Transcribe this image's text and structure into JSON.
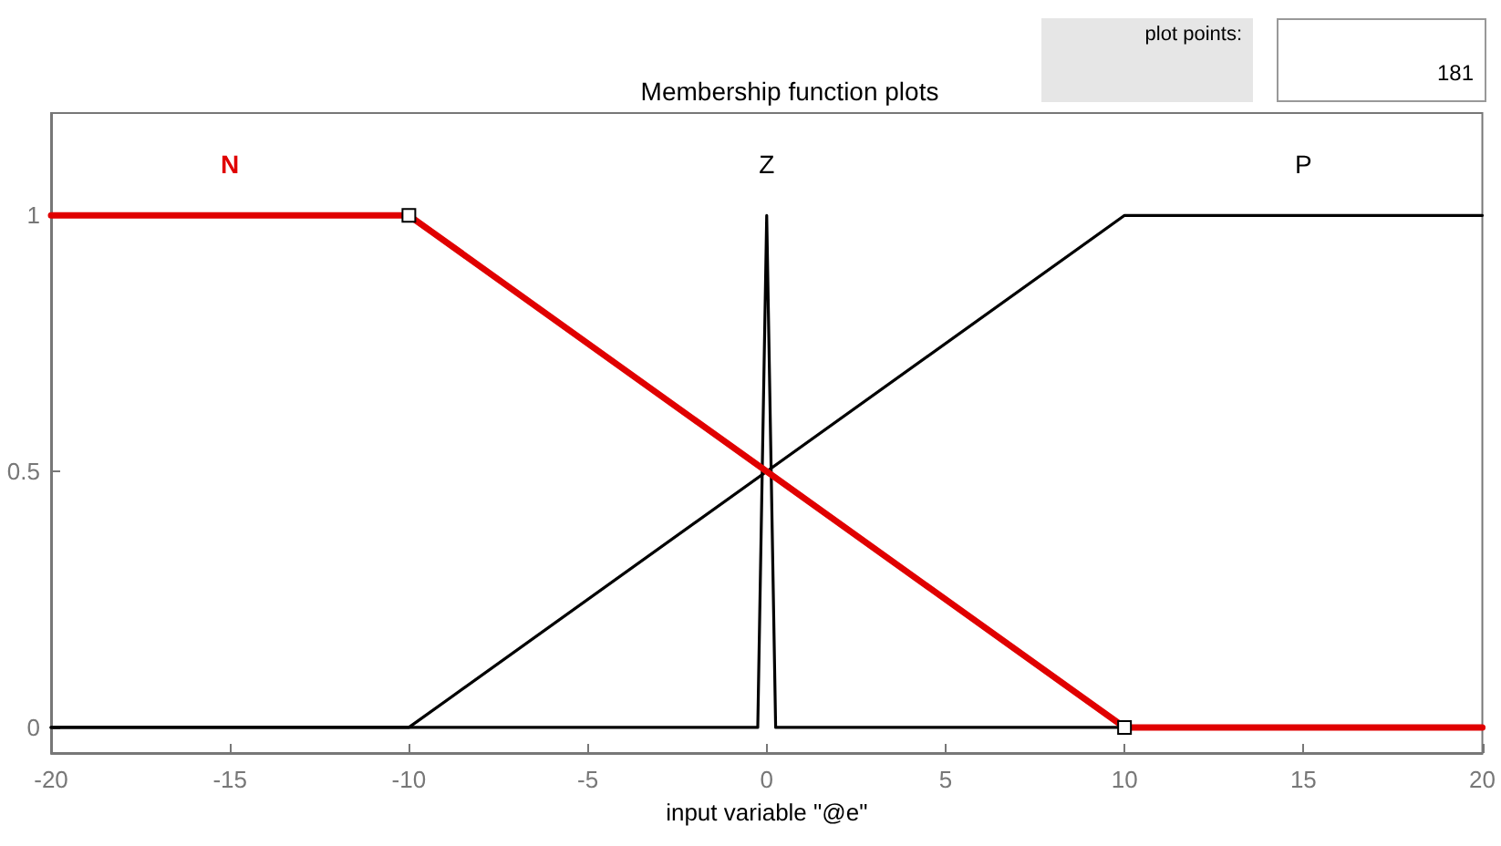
{
  "chart_data": {
    "type": "line",
    "title": "Membership function plots",
    "xlabel": "input variable \"@e\"",
    "annotations": [
      "plot points:",
      "181"
    ],
    "series": [
      {
        "name": "N",
        "color": "#e00000",
        "x": [
          -20,
          -10,
          10,
          20
        ],
        "values": [
          1,
          1,
          0,
          0
        ],
        "marker": "square"
      },
      {
        "name": "Z",
        "color": "#000000",
        "x": [
          -20,
          -0.25,
          0,
          0.25,
          20
        ],
        "values": [
          0,
          0,
          1,
          0,
          0
        ]
      },
      {
        "name": "P",
        "color": "#000000",
        "x": [
          -20,
          -10,
          10,
          20
        ],
        "values": [
          0,
          0,
          1,
          1
        ]
      }
    ],
    "xlim": [
      -20,
      20
    ],
    "xticks": [
      -20,
      -15,
      -10,
      -5,
      0,
      5,
      10,
      15,
      20
    ],
    "ylim": [
      -0.05,
      1.2
    ],
    "yticks": [
      0,
      0.5,
      1
    ],
    "grid": false,
    "legend": false
  }
}
